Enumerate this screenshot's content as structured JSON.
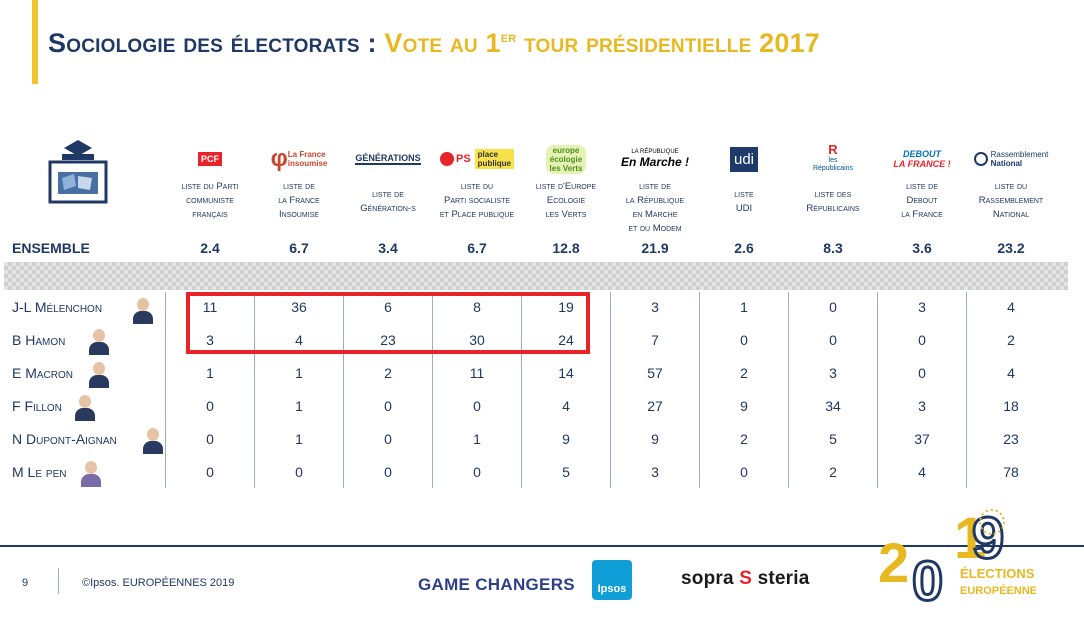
{
  "title": {
    "part1": "Sociologie des électorats :",
    "part2_prefix": "Vote au 1",
    "part2_sup": "er",
    "part2_suffix": "tour présidentielle 2017"
  },
  "parties": [
    {
      "logo": "PCF",
      "label1": "liste du Parti",
      "label2": "communiste",
      "label3": "français",
      "label4": "",
      "color": "#e8232a"
    },
    {
      "logo": "La France insoumise",
      "label1": "liste de",
      "label2": "la France",
      "label3": "Insoumise",
      "label4": "",
      "color": "#c9462c"
    },
    {
      "logo": "GÉNÉRATIONS",
      "label1": "liste de",
      "label2": "Génération-s",
      "label3": "",
      "label4": "",
      "color": "#1f3864"
    },
    {
      "logo": "PS place publique",
      "label1": "liste du",
      "label2": "Parti socialiste",
      "label3": "et Place publique",
      "label4": "",
      "color": "#e8232a"
    },
    {
      "logo": "europe écologie les verts",
      "label1": "liste d'Europe",
      "label2": "Ecologie",
      "label3": "les Verts",
      "label4": "",
      "color": "#6ab023"
    },
    {
      "logo": "En Marche !",
      "label1": "liste de",
      "label2": "la République",
      "label3": "en Marche",
      "label4": "et du Modem",
      "color": "#000000"
    },
    {
      "logo": "udi",
      "label1": "liste",
      "label2": "UDI",
      "label3": "",
      "label4": "",
      "color": "#1d3a6b"
    },
    {
      "logo": "LR",
      "label1": "liste des",
      "label2": "Républicains",
      "label3": "",
      "label4": "",
      "color": "#0055a4"
    },
    {
      "logo": "DEBOUT LA FRANCE !",
      "label1": "liste de",
      "label2": "Debout",
      "label3": "la France",
      "label4": "",
      "color": "#0072bb"
    },
    {
      "logo": "Rassemblement National",
      "label1": "liste du",
      "label2": "Rassemblement",
      "label3": "National",
      "label4": "",
      "color": "#1d3a6b"
    }
  ],
  "logo_texts": {
    "pcf": "PCF",
    "lfi_1": "La France",
    "lfi_2": "insoumise",
    "generations": "GÉNÉRATIONS",
    "ps": "PS",
    "pp_1": "place",
    "pp_2": "publique",
    "eelv_1": "europe",
    "eelv_2": "écologie",
    "eelv_3": "les Verts",
    "lrem_1": "LA RÉPUBLIQUE",
    "lrem_2": "En Marche !",
    "udi": "udi",
    "lr_1": "les",
    "lr_2": "Républicains",
    "dlf_1": "DEBOUT",
    "dlf_2": "LA FRANCE !",
    "rn_1": "Rassemblement",
    "rn_2": "National"
  },
  "ensemble": {
    "label": "ENSEMBLE",
    "values": [
      "2.4",
      "6.7",
      "3.4",
      "6.7",
      "12.8",
      "21.9",
      "2.6",
      "8.3",
      "3.6",
      "23.2"
    ]
  },
  "rows": [
    {
      "label": "J-L Mélenchon",
      "values": [
        "11",
        "36",
        "6",
        "8",
        "19",
        "3",
        "1",
        "0",
        "3",
        "4"
      ]
    },
    {
      "label": "B Hamon",
      "values": [
        "3",
        "4",
        "23",
        "30",
        "24",
        "7",
        "0",
        "0",
        "0",
        "2"
      ]
    },
    {
      "label": "E Macron",
      "values": [
        "1",
        "1",
        "2",
        "11",
        "14",
        "57",
        "2",
        "3",
        "0",
        "4"
      ]
    },
    {
      "label": "F Fillon",
      "values": [
        "0",
        "1",
        "0",
        "0",
        "4",
        "27",
        "9",
        "34",
        "3",
        "18"
      ]
    },
    {
      "label": "N Dupont-Aignan",
      "values": [
        "0",
        "1",
        "0",
        "1",
        "9",
        "9",
        "2",
        "5",
        "37",
        "23"
      ]
    },
    {
      "label": "M Le pen",
      "values": [
        "0",
        "0",
        "0",
        "0",
        "5",
        "3",
        "0",
        "2",
        "4",
        "78"
      ]
    }
  ],
  "footer": {
    "page_number": "9",
    "copyright": "©Ipsos.  EUROPÉENNES 2019",
    "game_changers": "GAME CHANGERS",
    "ipsos": "Ipsos",
    "sopra_1": "sopra",
    "sopra_2": "steria",
    "elections_1": "ÉLECTIONS",
    "elections_2": "EUROPÉENNES",
    "year_parts": [
      "2",
      "0",
      "1",
      "9"
    ]
  },
  "colors": {
    "navy": "#1f3864",
    "gold": "#e8b820",
    "highlight": "#e8232a"
  }
}
